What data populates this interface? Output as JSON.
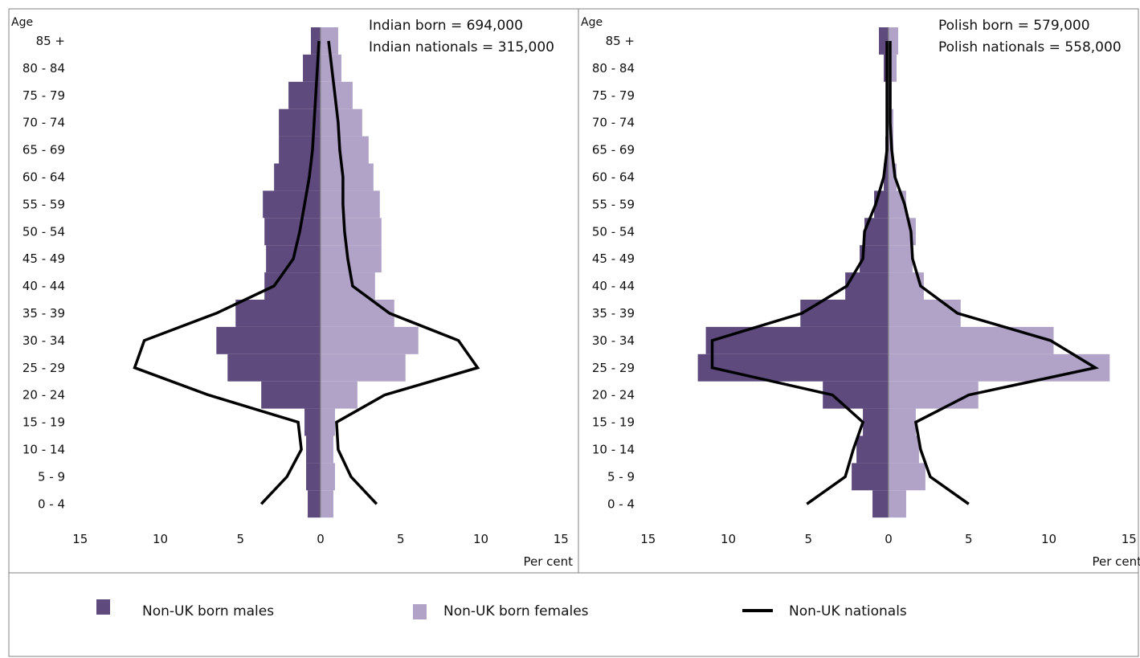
{
  "colors": {
    "males": "#5e4a7d",
    "females": "#b1a3c8",
    "nationals": "#000000",
    "zero_line": "#8c8c8c",
    "frame": "#808080"
  },
  "legend": {
    "males_label": "Non-UK born males",
    "females_label": "Non-UK born females",
    "nationals_label": "Non-UK nationals",
    "placement": "bottom"
  },
  "chart_data": [
    {
      "type": "bar",
      "subtype": "population-pyramid",
      "annotation_lines": [
        "Indian born = 694,000",
        "Indian nationals = 315,000"
      ],
      "ylabel": "Age",
      "xlabel": "Per cent",
      "xlim": [
        -15,
        15
      ],
      "xticks": [
        -15,
        -10,
        -5,
        0,
        5,
        10,
        15
      ],
      "xtick_labels": [
        "15",
        "10",
        "5",
        "0",
        "5",
        "10",
        "15"
      ],
      "categories": [
        "0 - 4",
        "5 - 9",
        "10 - 14",
        "15 - 19",
        "20 - 24",
        "25 - 29",
        "30 - 34",
        "35 - 39",
        "40 - 44",
        "45 - 49",
        "50 - 54",
        "55 - 59",
        "60 - 64",
        "65 - 69",
        "70 - 74",
        "75 - 79",
        "80 - 84",
        "85 +"
      ],
      "series": [
        {
          "name": "Non-UK born males",
          "kind": "bar",
          "side": "left",
          "values": [
            0.8,
            0.9,
            0.9,
            1.0,
            3.7,
            5.8,
            6.5,
            5.3,
            3.5,
            3.4,
            3.5,
            3.6,
            2.9,
            2.6,
            2.6,
            2.0,
            1.1,
            0.6
          ]
        },
        {
          "name": "Non-UK born females",
          "kind": "bar",
          "side": "right",
          "values": [
            0.8,
            0.9,
            0.8,
            0.9,
            2.3,
            5.3,
            6.1,
            4.6,
            3.4,
            3.8,
            3.8,
            3.7,
            3.3,
            3.0,
            2.6,
            2.0,
            1.3,
            1.1
          ]
        },
        {
          "name": "Non-UK nationals",
          "kind": "line",
          "male_values": [
            3.7,
            2.1,
            1.2,
            1.4,
            7.0,
            11.6,
            11.0,
            6.5,
            2.9,
            1.7,
            1.3,
            1.0,
            0.7,
            0.5,
            0.4,
            0.3,
            0.2,
            0.1
          ],
          "female_values": [
            3.5,
            1.9,
            1.1,
            1.0,
            4.0,
            9.8,
            8.6,
            4.3,
            2.0,
            1.7,
            1.5,
            1.4,
            1.4,
            1.2,
            1.1,
            0.9,
            0.7,
            0.5
          ]
        }
      ]
    },
    {
      "type": "bar",
      "subtype": "population-pyramid",
      "annotation_lines": [
        "Polish born = 579,000",
        "Polish nationals = 558,000"
      ],
      "ylabel": "Age",
      "xlabel": "Per cent",
      "xlim": [
        -15,
        15
      ],
      "xticks": [
        -15,
        -10,
        -5,
        0,
        5,
        10,
        15
      ],
      "xtick_labels": [
        "15",
        "10",
        "5",
        "0",
        "5",
        "10",
        "15"
      ],
      "categories": [
        "0 - 4",
        "5 - 9",
        "10 - 14",
        "15 - 19",
        "20 - 24",
        "25 - 29",
        "30 - 34",
        "35 - 39",
        "40 - 44",
        "45 - 49",
        "50 - 54",
        "55 - 59",
        "60 - 64",
        "65 - 69",
        "70 - 74",
        "75 - 79",
        "80 - 84",
        "85 +"
      ],
      "series": [
        {
          "name": "Non-UK born males",
          "kind": "bar",
          "side": "left",
          "values": [
            1.0,
            2.3,
            2.0,
            1.6,
            4.1,
            11.9,
            11.4,
            5.5,
            2.7,
            1.8,
            1.5,
            0.9,
            0.3,
            0.2,
            0.1,
            0.1,
            0.3,
            0.6
          ]
        },
        {
          "name": "Non-UK born females",
          "kind": "bar",
          "side": "right",
          "values": [
            1.1,
            2.3,
            1.9,
            1.7,
            5.6,
            13.8,
            10.3,
            4.5,
            2.2,
            1.5,
            1.7,
            1.1,
            0.5,
            0.3,
            0.3,
            0.2,
            0.5,
            0.6
          ]
        },
        {
          "name": "Non-UK nationals",
          "kind": "line",
          "male_values": [
            5.1,
            2.7,
            2.2,
            1.6,
            3.5,
            11.0,
            11.0,
            5.4,
            2.6,
            1.6,
            1.5,
            0.8,
            0.3,
            0.1,
            0.1,
            0.1,
            0.1,
            0.1
          ],
          "female_values": [
            5.0,
            2.6,
            2.0,
            1.7,
            5.0,
            12.9,
            10.1,
            4.3,
            2.0,
            1.5,
            1.4,
            1.0,
            0.4,
            0.2,
            0.1,
            0.1,
            0.1,
            0.1
          ]
        }
      ]
    }
  ]
}
